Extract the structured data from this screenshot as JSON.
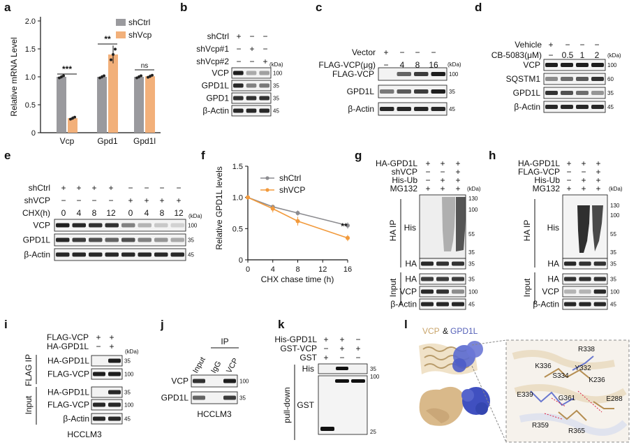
{
  "panels": {
    "a": {
      "label": "a",
      "ylabel": "Relative mRNA Level",
      "legend": [
        "shCtrl",
        "shVcp"
      ],
      "sig": [
        "***",
        "**",
        "ns"
      ],
      "chart_data": {
        "type": "bar",
        "categories": [
          "Vcp",
          "Gpd1",
          "Gpd1l"
        ],
        "series": [
          {
            "name": "shCtrl",
            "values": [
              1.0,
              1.0,
              1.0
            ],
            "color": "#9a9a9e"
          },
          {
            "name": "shVcp",
            "values": [
              0.26,
              1.4,
              1.01
            ],
            "color": "#f2b07a"
          }
        ],
        "ylim": [
          0,
          2.0
        ],
        "yticks": [
          "0",
          "0.5",
          "1.0",
          "1.5",
          "2.0"
        ]
      }
    },
    "b": {
      "label": "b",
      "rows": [
        "shCtrl",
        "shVcp#1",
        "shVcp#2"
      ],
      "signs": [
        [
          "+",
          "−",
          "−"
        ],
        [
          "−",
          "+",
          "−"
        ],
        [
          "−",
          "−",
          "+"
        ]
      ],
      "blots": [
        "VCP",
        "GPD1L",
        "GPD1",
        "β-Actin"
      ],
      "mw": [
        "100",
        "35",
        "35",
        "45"
      ],
      "kda": "(kDa)"
    },
    "c": {
      "label": "c",
      "rows": [
        "Vector",
        "FLAG-VCP(μg)"
      ],
      "signs": [
        [
          "+",
          "−",
          "−",
          "−"
        ],
        [
          "−",
          "4",
          "8",
          "16"
        ]
      ],
      "blots": [
        "FLAG-VCP",
        "GPD1L",
        "β-Actin"
      ],
      "mw": [
        "100",
        "35",
        "45"
      ],
      "kda": "(kDa)"
    },
    "d": {
      "label": "d",
      "rows": [
        "Vehicle",
        "CB-5083(μM)"
      ],
      "signs": [
        [
          "+",
          "−",
          "−",
          "−"
        ],
        [
          "−",
          "0.5",
          "1",
          "2"
        ]
      ],
      "blots": [
        "VCP",
        "SQSTM1",
        "GPD1L",
        "β-Actin"
      ],
      "mw": [
        "100",
        "60",
        "35",
        "45"
      ],
      "kda": "(kDa)"
    },
    "e": {
      "label": "e",
      "rows": [
        "shCtrl",
        "shVCP",
        "CHX(h)"
      ],
      "signs": [
        [
          "+",
          "+",
          "+",
          "+",
          "−",
          "−",
          "−",
          "−"
        ],
        [
          "−",
          "−",
          "−",
          "−",
          "+",
          "+",
          "+",
          "+"
        ],
        [
          "0",
          "4",
          "8",
          "12",
          "0",
          "4",
          "8",
          "12"
        ]
      ],
      "blots": [
        "VCP",
        "GPD1L",
        "β-Actin"
      ],
      "mw": [
        "100",
        "35",
        "45"
      ],
      "kda": "(kDa)"
    },
    "f": {
      "label": "f",
      "sig": "**",
      "chart_data": {
        "type": "line",
        "x": [
          0,
          4,
          8,
          16
        ],
        "series": [
          {
            "name": "shCtrl",
            "values": [
              1.0,
              0.85,
              0.75,
              0.55
            ],
            "color": "#8c8c90"
          },
          {
            "name": "shVCP",
            "values": [
              1.0,
              0.82,
              0.62,
              0.35
            ],
            "color": "#f29a3c"
          }
        ],
        "xlabel": "CHX chase time (h)",
        "ylabel": "Relative GPD1L levels",
        "xlim": [
          0,
          16
        ],
        "ylim": [
          0,
          1.5
        ],
        "xticks": [
          "0",
          "4",
          "8",
          "12",
          "16"
        ],
        "yticks": [
          "0",
          "0.5",
          "1.0",
          "1.5"
        ]
      }
    },
    "g": {
      "label": "g",
      "rows": [
        "HA-GPD1L",
        "shVCP",
        "His-Ub",
        "MG132"
      ],
      "signs": [
        [
          "+",
          "+",
          "+"
        ],
        [
          "−",
          "−",
          "+"
        ],
        [
          "−",
          "+",
          "+"
        ],
        [
          "+",
          "+",
          "+"
        ]
      ],
      "section_ip": "HA IP",
      "section_input": "Input",
      "blots": [
        "His",
        "HA",
        "HA",
        "VCP",
        "β-Actin"
      ],
      "mw_ladder": [
        "130",
        "100",
        "55",
        "35"
      ],
      "mw": [
        "35",
        "35",
        "100",
        "45"
      ],
      "kda": "(kDa)"
    },
    "h": {
      "label": "h",
      "rows": [
        "HA-GPD1L",
        "FLAG-VCP",
        "His-Ub",
        "MG132"
      ],
      "signs": [
        [
          "+",
          "+",
          "+"
        ],
        [
          "−",
          "−",
          "+"
        ],
        [
          "−",
          "+",
          "+"
        ],
        [
          "+",
          "+",
          "+"
        ]
      ],
      "section_ip": "HA IP",
      "section_input": "Input",
      "blots": [
        "His",
        "HA",
        "HA",
        "VCP",
        "β-Actin"
      ],
      "mw_ladder": [
        "130",
        "100",
        "55",
        "35"
      ],
      "mw": [
        "35",
        "35",
        "100",
        "45"
      ],
      "kda": "(kDa)"
    },
    "i": {
      "label": "i",
      "rows": [
        "FLAG-VCP",
        "HA-GPD1L"
      ],
      "signs": [
        [
          "+",
          "+"
        ],
        [
          "−",
          "+"
        ]
      ],
      "section_ip": "FLAG IP",
      "section_input": "Input",
      "blots": [
        "HA-GPD1L",
        "FLAG-VCP",
        "HA-GPD1L",
        "FLAG-VCP",
        "β-Actin"
      ],
      "mw": [
        "35",
        "100",
        "35",
        "100",
        "45"
      ],
      "kda": "(kDa)",
      "cell": "HCCLM3"
    },
    "j": {
      "label": "j",
      "cols": [
        "Input",
        "IgG",
        "VCP"
      ],
      "ip": "IP",
      "blots": [
        "VCP",
        "GPD1L"
      ],
      "mw": [
        "100",
        "35"
      ],
      "cell": "HCCLM3"
    },
    "k": {
      "label": "k",
      "rows": [
        "His-GPD1L",
        "GST-VCP",
        "GST"
      ],
      "signs": [
        [
          "+",
          "+",
          "−"
        ],
        [
          "−",
          "+",
          "+"
        ],
        [
          "+",
          "−",
          "−"
        ]
      ],
      "section": "pull-down",
      "blots": [
        "His",
        "GST"
      ],
      "mw": [
        "35",
        "100",
        "25"
      ]
    },
    "l": {
      "label": "l",
      "title_vcp": "VCP",
      "title_amp": "&",
      "title_gpd": "GPD1L",
      "residues": [
        "R338",
        "K336",
        "Y332",
        "S334",
        "K236",
        "E339",
        "G361",
        "E288",
        "R359",
        "R365"
      ]
    }
  }
}
